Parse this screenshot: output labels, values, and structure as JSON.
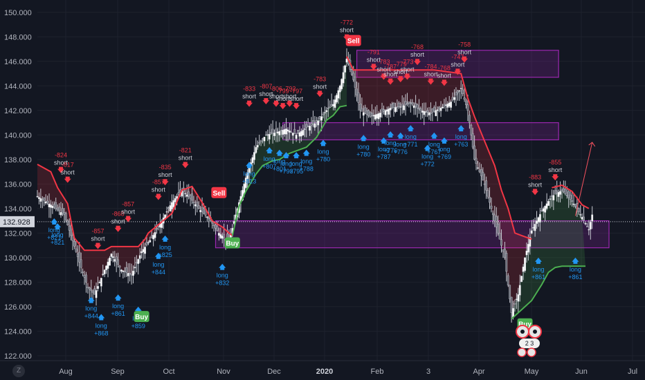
{
  "chart_data": {
    "type": "candlestick",
    "y_range": [
      121.6,
      151.0
    ],
    "y_ticks": [
      "150.000",
      "148.000",
      "146.000",
      "144.000",
      "142.000",
      "140.000",
      "138.000",
      "136.000",
      "134.000",
      "132.000",
      "130.000",
      "128.000",
      "126.000",
      "124.000",
      "122.000"
    ],
    "x_ticks": [
      {
        "label": "Aug",
        "bold": false
      },
      {
        "label": "Sep",
        "bold": false
      },
      {
        "label": "Oct",
        "bold": false
      },
      {
        "label": "Nov",
        "bold": false
      },
      {
        "label": "Dec",
        "bold": false
      },
      {
        "label": "2020",
        "bold": true
      },
      {
        "label": "Feb",
        "bold": false
      },
      {
        "label": "3",
        "bold": false
      },
      {
        "label": "Apr",
        "bold": false
      },
      {
        "label": "May",
        "bold": false
      },
      {
        "label": "Jun",
        "bold": false
      },
      {
        "label": "Jul",
        "bold": false
      }
    ],
    "last_price": "132.928",
    "price_path": [
      [
        0,
        135.0
      ],
      [
        4,
        134.3
      ],
      [
        8,
        133.5
      ],
      [
        10,
        131.8
      ],
      [
        13,
        129.2
      ],
      [
        15,
        127.6
      ],
      [
        17,
        127.0
      ],
      [
        20,
        129.0
      ],
      [
        22,
        130.3
      ],
      [
        25,
        129.0
      ],
      [
        28,
        128.6
      ],
      [
        31,
        130.5
      ],
      [
        34,
        131.6
      ],
      [
        37,
        133.0
      ],
      [
        40,
        134.5
      ],
      [
        43,
        135.5
      ],
      [
        45,
        135.0
      ],
      [
        48,
        134.0
      ],
      [
        51,
        133.2
      ],
      [
        54,
        132.0
      ],
      [
        57,
        131.3
      ],
      [
        59,
        133.5
      ],
      [
        62,
        136.5
      ],
      [
        65,
        139.0
      ],
      [
        68,
        140.0
      ],
      [
        71,
        140.2
      ],
      [
        74,
        140.5
      ],
      [
        77,
        140.0
      ],
      [
        80,
        140.6
      ],
      [
        83,
        141.0
      ],
      [
        86,
        142.0
      ],
      [
        88,
        142.5
      ],
      [
        90,
        144.0
      ],
      [
        92,
        146.2
      ],
      [
        94,
        144.5
      ],
      [
        96,
        142.0
      ],
      [
        99,
        141.5
      ],
      [
        102,
        141.8
      ],
      [
        105,
        142.2
      ],
      [
        108,
        142.3
      ],
      [
        111,
        142.6
      ],
      [
        114,
        142.0
      ],
      [
        117,
        141.8
      ],
      [
        120,
        142.2
      ],
      [
        123,
        142.7
      ],
      [
        126,
        143.8
      ],
      [
        128,
        142.0
      ],
      [
        130,
        138.0
      ],
      [
        133,
        136.0
      ],
      [
        136,
        133.0
      ],
      [
        139,
        130.0
      ],
      [
        141,
        125.5
      ],
      [
        143,
        127.0
      ],
      [
        145,
        130.0
      ],
      [
        147,
        132.2
      ],
      [
        150,
        133.8
      ],
      [
        153,
        135.0
      ],
      [
        156,
        135.5
      ],
      [
        159,
        134.6
      ],
      [
        162,
        133.3
      ],
      [
        164,
        132.3
      ],
      [
        165,
        133.5
      ]
    ],
    "stop_line_short_red": [
      [
        0,
        137.6
      ],
      [
        4,
        137.0
      ],
      [
        6,
        135.7
      ],
      [
        9,
        134.4
      ],
      [
        11,
        131.6
      ],
      [
        14,
        130.6
      ],
      [
        20,
        130.6
      ],
      [
        22,
        130.9
      ],
      [
        30,
        130.9
      ],
      [
        32,
        131.5
      ],
      [
        33,
        132.0
      ],
      [
        40,
        133.6
      ],
      [
        43,
        135.5
      ],
      [
        46,
        135.8
      ],
      [
        49,
        134.5
      ],
      [
        52,
        133.0
      ],
      [
        55,
        132.5
      ],
      [
        57,
        132.0
      ],
      [
        58,
        131.8
      ]
    ],
    "stop_line_long_green": [
      [
        58,
        131.8
      ],
      [
        60,
        134.2
      ],
      [
        62,
        135.4
      ],
      [
        65,
        136.8
      ],
      [
        67,
        137.5
      ],
      [
        70,
        137.9
      ],
      [
        72,
        138.0
      ],
      [
        75,
        138.5
      ],
      [
        78,
        138.8
      ],
      [
        80,
        139.0
      ],
      [
        83,
        139.8
      ],
      [
        86,
        141.2
      ],
      [
        88,
        141.6
      ],
      [
        90,
        142.3
      ],
      [
        92,
        142.4
      ]
    ],
    "stop_line_short_red_2": [
      [
        92,
        146.4
      ],
      [
        94,
        145.3
      ],
      [
        97,
        145.3
      ],
      [
        118,
        145.3
      ],
      [
        126,
        145.0
      ],
      [
        128,
        143.0
      ],
      [
        130,
        141.5
      ],
      [
        133,
        139.5
      ],
      [
        136,
        137.5
      ],
      [
        138,
        135.5
      ],
      [
        140,
        134.0
      ],
      [
        142,
        132.0
      ],
      [
        144,
        131.8
      ],
      [
        147,
        131.5
      ]
    ],
    "stop_line_long_green_2": [
      [
        141,
        125.0
      ],
      [
        143,
        125.5
      ],
      [
        145,
        126.0
      ],
      [
        147,
        126.5
      ],
      [
        150,
        127.8
      ],
      [
        152,
        128.8
      ],
      [
        154,
        129.2
      ],
      [
        156,
        129.3
      ],
      [
        158,
        129.3
      ],
      [
        163,
        129.3
      ]
    ],
    "stop_line_short_red_3": [
      [
        153,
        135.7
      ],
      [
        156,
        135.9
      ],
      [
        159,
        135.4
      ],
      [
        162,
        134.3
      ],
      [
        164,
        134.0
      ]
    ],
    "zones": [
      {
        "x0": 95,
        "x1": 155,
        "y0": 146.9,
        "y1": 144.7
      },
      {
        "x0": 73,
        "x1": 155,
        "y0": 141.0,
        "y1": 139.6
      },
      {
        "x0": 53,
        "x1": 170,
        "y0": 133.0,
        "y1": 130.8
      }
    ],
    "signals": [
      {
        "type": "short",
        "x": 7,
        "y": 137.4,
        "value": "-824"
      },
      {
        "type": "short",
        "x": 9,
        "y": 136.6,
        "value": "-817"
      },
      {
        "type": "long",
        "x": 5,
        "y": 133.2,
        "value": "+821"
      },
      {
        "type": "long",
        "x": 6,
        "y": 132.8,
        "value": "+821"
      },
      {
        "type": "long",
        "x": 16,
        "y": 126.8,
        "value": "+844"
      },
      {
        "type": "long",
        "x": 19,
        "y": 125.4,
        "value": "+868"
      },
      {
        "type": "short",
        "x": 18,
        "y": 131.2,
        "value": "-857"
      },
      {
        "type": "short",
        "x": 24,
        "y": 132.6,
        "value": "-868"
      },
      {
        "type": "short",
        "x": 27,
        "y": 133.4,
        "value": "-857"
      },
      {
        "type": "long",
        "x": 24,
        "y": 127.0,
        "value": "+861"
      },
      {
        "type": "long",
        "x": 30,
        "y": 126.0,
        "value": "+859"
      },
      {
        "type": "short",
        "x": 36,
        "y": 135.2,
        "value": "-857"
      },
      {
        "type": "short",
        "x": 38,
        "y": 136.4,
        "value": "-835"
      },
      {
        "type": "long",
        "x": 36,
        "y": 130.4,
        "value": "+844"
      },
      {
        "type": "long",
        "x": 38,
        "y": 131.8,
        "value": "+825"
      },
      {
        "type": "short",
        "x": 44,
        "y": 137.8,
        "value": "-821"
      },
      {
        "type": "long",
        "x": 55,
        "y": 129.5,
        "value": "+832"
      },
      {
        "type": "short",
        "x": 63,
        "y": 142.8,
        "value": "-833"
      },
      {
        "type": "short",
        "x": 68,
        "y": 143.0,
        "value": "-807"
      },
      {
        "type": "short",
        "x": 71,
        "y": 142.8,
        "value": "-806"
      },
      {
        "type": "short",
        "x": 73,
        "y": 142.6,
        "value": "-799"
      },
      {
        "type": "short",
        "x": 75,
        "y": 142.8,
        "value": "-792"
      },
      {
        "type": "short",
        "x": 77,
        "y": 142.6,
        "value": "-797"
      },
      {
        "type": "short",
        "x": 84,
        "y": 143.6,
        "value": "-783"
      },
      {
        "type": "long",
        "x": 63,
        "y": 137.8,
        "value": "+813"
      },
      {
        "type": "long",
        "x": 69,
        "y": 139.0,
        "value": "+807"
      },
      {
        "type": "long",
        "x": 72,
        "y": 138.8,
        "value": "+801"
      },
      {
        "type": "long",
        "x": 74,
        "y": 138.6,
        "value": "+793"
      },
      {
        "type": "long",
        "x": 77,
        "y": 138.6,
        "value": "+795"
      },
      {
        "type": "long",
        "x": 80,
        "y": 138.8,
        "value": "+788"
      },
      {
        "type": "long",
        "x": 85,
        "y": 139.6,
        "value": "+780"
      },
      {
        "type": "short",
        "x": 92,
        "y": 148.2,
        "value": "-772"
      },
      {
        "type": "long",
        "x": 97,
        "y": 140.0,
        "value": "+780"
      },
      {
        "type": "short",
        "x": 100,
        "y": 145.8,
        "value": "-791"
      },
      {
        "type": "short",
        "x": 103,
        "y": 145.0,
        "value": "-783"
      },
      {
        "type": "short",
        "x": 105,
        "y": 144.6,
        "value": "-787"
      },
      {
        "type": "short",
        "x": 108,
        "y": 144.8,
        "value": "-779"
      },
      {
        "type": "short",
        "x": 110,
        "y": 145.0,
        "value": "-773"
      },
      {
        "type": "short",
        "x": 113,
        "y": 146.2,
        "value": "-768"
      },
      {
        "type": "short",
        "x": 117,
        "y": 144.6,
        "value": "-784"
      },
      {
        "type": "short",
        "x": 121,
        "y": 144.5,
        "value": "-768"
      },
      {
        "type": "short",
        "x": 127,
        "y": 146.4,
        "value": "-758"
      },
      {
        "type": "short",
        "x": 125,
        "y": 145.4,
        "value": "-747"
      },
      {
        "type": "long",
        "x": 103,
        "y": 139.8,
        "value": "+787"
      },
      {
        "type": "long",
        "x": 105,
        "y": 140.3,
        "value": "+776"
      },
      {
        "type": "long",
        "x": 108,
        "y": 140.2,
        "value": "+776"
      },
      {
        "type": "long",
        "x": 111,
        "y": 140.8,
        "value": "+771"
      },
      {
        "type": "long",
        "x": 116,
        "y": 139.2,
        "value": "+772"
      },
      {
        "type": "long",
        "x": 118,
        "y": 140.2,
        "value": "+767"
      },
      {
        "type": "long",
        "x": 121,
        "y": 139.8,
        "value": "+769"
      },
      {
        "type": "long",
        "x": 126,
        "y": 140.8,
        "value": "+763"
      },
      {
        "type": "short",
        "x": 148,
        "y": 135.6,
        "value": "-883"
      },
      {
        "type": "short",
        "x": 154,
        "y": 136.8,
        "value": "-855"
      },
      {
        "type": "long",
        "x": 149,
        "y": 130.0,
        "value": "+861"
      },
      {
        "type": "long",
        "x": 160,
        "y": 130.0,
        "value": "+861"
      }
    ],
    "badges": [
      {
        "label": "Sell",
        "x": 94,
        "y": 147.7,
        "color": "#f23645"
      },
      {
        "label": "Buy",
        "x": 31,
        "y": 125.2,
        "color": "#4caf50"
      },
      {
        "label": "Sell",
        "x": 54,
        "y": 135.3,
        "color": "#f23645"
      },
      {
        "label": "Buy",
        "x": 58,
        "y": 131.2,
        "color": "#4caf50"
      },
      {
        "label": "Buy",
        "x": 145,
        "y": 124.6,
        "color": "#4caf50"
      }
    ],
    "projection": [
      [
        160,
        133.4
      ],
      [
        165,
        139.4
      ]
    ],
    "last_price_y": 132.928
  },
  "labels": {
    "long": "long",
    "short": "short"
  },
  "colors": {
    "bg": "#131722",
    "zone_fill": "#9c27b0",
    "short": "#f23645",
    "long": "#2196f3",
    "green": "#4caf50",
    "red_line": "#f23645",
    "projection": "#f7525f"
  },
  "ui": {
    "settings_label": "Z",
    "logo_counter": "2 3"
  }
}
